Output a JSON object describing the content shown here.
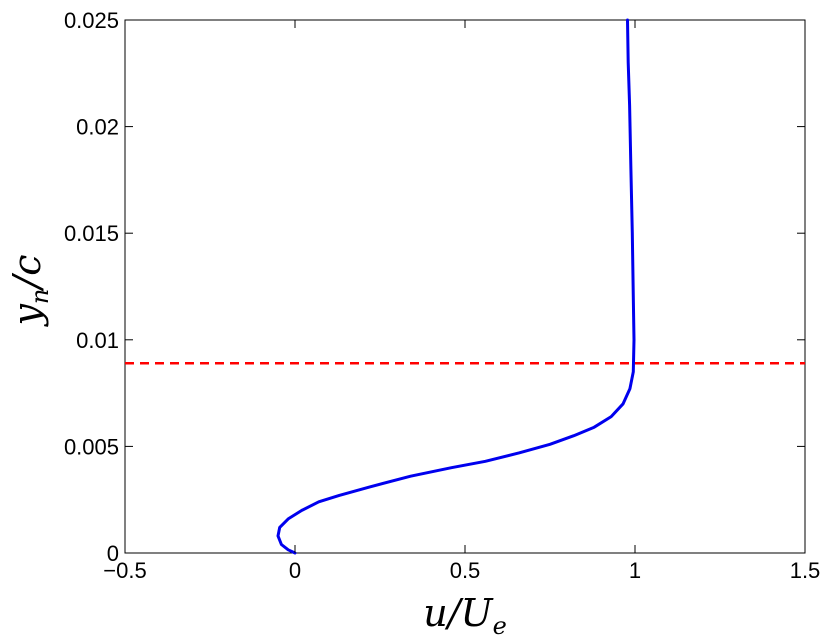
{
  "chart_data": {
    "type": "line",
    "title": "",
    "xlabel": {
      "main": "u",
      "slash": "/",
      "main2": "U",
      "sub": "e"
    },
    "ylabel": {
      "main": "y",
      "sub": "n",
      "slash": "/",
      "main2": "c"
    },
    "xlim": [
      -0.5,
      1.5
    ],
    "ylim": [
      0,
      0.025
    ],
    "xticks": [
      -0.5,
      0,
      0.5,
      1,
      1.5
    ],
    "xtick_labels": [
      "−0.5",
      "0",
      "0.5",
      "1",
      "1.5"
    ],
    "yticks": [
      0,
      0.005,
      0.01,
      0.015,
      0.02,
      0.025
    ],
    "ytick_labels": [
      "0",
      "0.005",
      "0.01",
      "0.015",
      "0.02",
      "0.025"
    ],
    "grid": false,
    "series": [
      {
        "color": "#0000ee",
        "style": "solid",
        "points": [
          [
            0.0,
            0.0
          ],
          [
            -0.02,
            0.00015
          ],
          [
            -0.04,
            0.0004
          ],
          [
            -0.05,
            0.0008
          ],
          [
            -0.045,
            0.0012
          ],
          [
            -0.02,
            0.0016
          ],
          [
            0.02,
            0.002
          ],
          [
            0.07,
            0.0024
          ],
          [
            0.13,
            0.0027
          ],
          [
            0.22,
            0.0031
          ],
          [
            0.34,
            0.0036
          ],
          [
            0.46,
            0.004
          ],
          [
            0.56,
            0.0043
          ],
          [
            0.66,
            0.0047
          ],
          [
            0.75,
            0.0051
          ],
          [
            0.82,
            0.0055
          ],
          [
            0.88,
            0.0059
          ],
          [
            0.93,
            0.0064
          ],
          [
            0.965,
            0.007
          ],
          [
            0.985,
            0.0077
          ],
          [
            0.995,
            0.0085
          ],
          [
            0.997,
            0.01
          ],
          [
            0.995,
            0.012
          ],
          [
            0.992,
            0.015
          ],
          [
            0.988,
            0.018
          ],
          [
            0.984,
            0.021
          ],
          [
            0.98,
            0.023
          ],
          [
            0.978,
            0.025
          ]
        ]
      }
    ],
    "reference_lines": [
      {
        "orientation": "horizontal",
        "y": 0.0089,
        "color": "#ff0000",
        "style": "dashed"
      }
    ]
  }
}
